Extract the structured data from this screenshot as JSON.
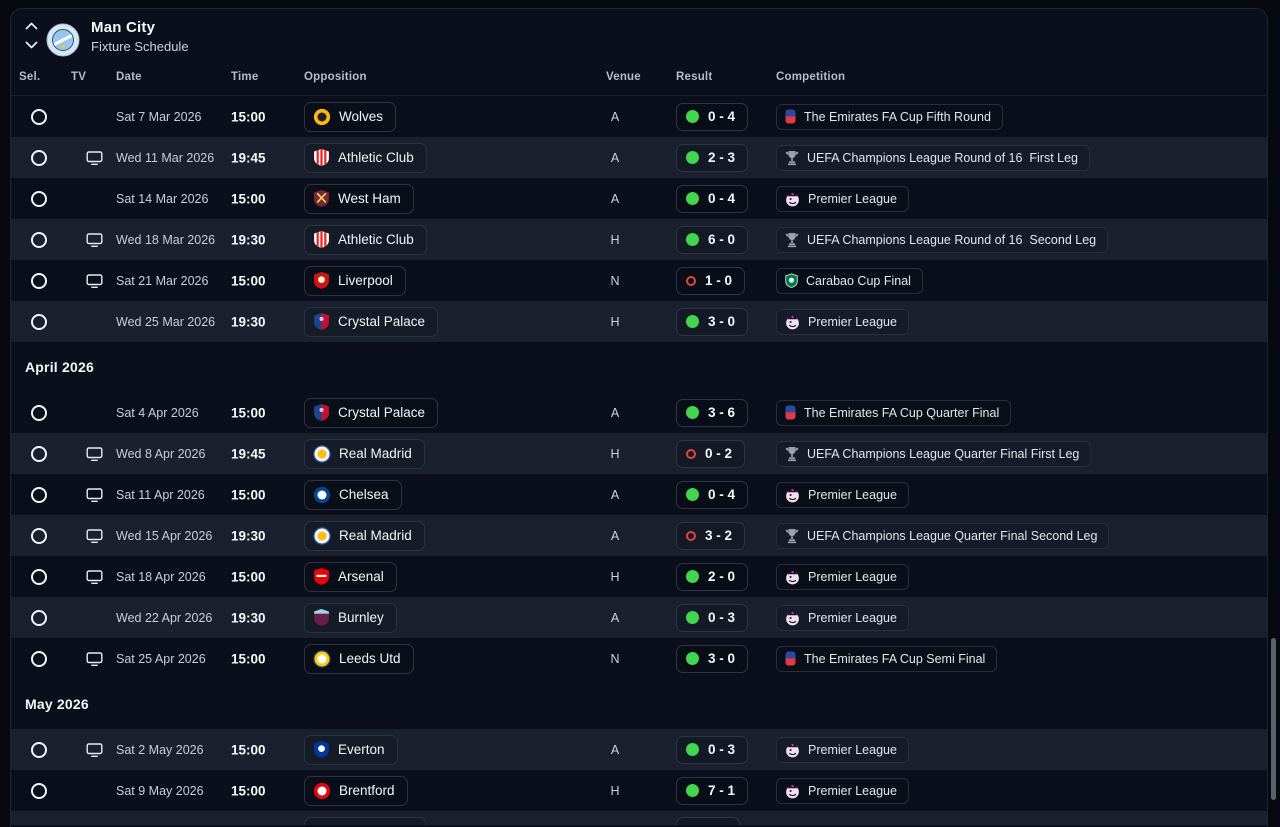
{
  "header": {
    "club": "Man City",
    "view": "Fixture Schedule"
  },
  "columns": {
    "sel": "Sel.",
    "tv": "TV",
    "date": "Date",
    "time": "Time",
    "opposition": "Opposition",
    "venue": "Venue",
    "result": "Result",
    "competition": "Competition"
  },
  "colors": {
    "win": "#41d64d",
    "loss": "#e2453b",
    "row_alt": "#1a202e",
    "panel_bg": "#0b0f1b"
  },
  "sections": [
    {
      "month": "",
      "rows": [
        {
          "tv": false,
          "date": "Sat 7 Mar 2026",
          "time": "15:00",
          "opponent": "Wolves",
          "crest": {
            "shape": "circle",
            "base": "#fdb913",
            "inner": "#231f20",
            "feature": "dot"
          },
          "venue": "A",
          "score": "0 - 4",
          "outcome": "win",
          "competition": "The Emirates FA Cup Fifth Round",
          "comp_icon": "fa-cup"
        },
        {
          "tv": true,
          "date": "Wed 11 Mar 2026",
          "time": "19:45",
          "opponent": "Athletic Club",
          "crest": {
            "shape": "shield",
            "base": "#ffffff",
            "inner": "#ee2523",
            "feature": "stripes"
          },
          "venue": "A",
          "score": "2 - 3",
          "outcome": "win",
          "competition": "UEFA Champions League Round of 16  First Leg",
          "comp_icon": "champions-league"
        },
        {
          "tv": false,
          "date": "Sat 14 Mar 2026",
          "time": "15:00",
          "opponent": "West Ham",
          "crest": {
            "shape": "shield",
            "base": "#7a263a",
            "inner": "#f3d459",
            "feature": "cross"
          },
          "venue": "A",
          "score": "0 - 4",
          "outcome": "win",
          "competition": "Premier League",
          "comp_icon": "premier-league"
        },
        {
          "tv": true,
          "date": "Wed 18 Mar 2026",
          "time": "19:30",
          "opponent": "Athletic Club",
          "crest": {
            "shape": "shield",
            "base": "#ffffff",
            "inner": "#ee2523",
            "feature": "stripes"
          },
          "venue": "H",
          "score": "6 - 0",
          "outcome": "win",
          "competition": "UEFA Champions League Round of 16  Second Leg",
          "comp_icon": "champions-league"
        },
        {
          "tv": true,
          "date": "Sat 21 Mar 2026",
          "time": "15:00",
          "opponent": "Liverpool",
          "crest": {
            "shape": "shield",
            "base": "#d01317",
            "inner": "#f6eedb",
            "feature": "dot"
          },
          "venue": "N",
          "score": "1 - 0",
          "outcome": "loss",
          "competition": "Carabao Cup Final",
          "comp_icon": "carabao-cup"
        },
        {
          "tv": false,
          "date": "Wed 25 Mar 2026",
          "time": "19:30",
          "opponent": "Crystal Palace",
          "crest": {
            "shape": "shield",
            "base": "#1b458f",
            "inner": "#c4122e",
            "feature": "split"
          },
          "venue": "H",
          "score": "3 - 0",
          "outcome": "win",
          "competition": "Premier League",
          "comp_icon": "premier-league"
        }
      ]
    },
    {
      "month": "April 2026",
      "rows": [
        {
          "tv": false,
          "date": "Sat 4 Apr 2026",
          "time": "15:00",
          "opponent": "Crystal Palace",
          "crest": {
            "shape": "shield",
            "base": "#1b458f",
            "inner": "#c4122e",
            "feature": "split"
          },
          "venue": "A",
          "score": "3 - 6",
          "outcome": "win",
          "competition": "The Emirates FA Cup Quarter Final",
          "comp_icon": "fa-cup"
        },
        {
          "tv": true,
          "date": "Wed 8 Apr 2026",
          "time": "19:45",
          "opponent": "Real Madrid",
          "crest": {
            "shape": "circle",
            "base": "#f5f4ee",
            "inner": "#febe10",
            "feature": "dot",
            "ring": "#2a5caa"
          },
          "venue": "H",
          "score": "0 - 2",
          "outcome": "loss",
          "competition": "UEFA Champions League Quarter Final First Leg",
          "comp_icon": "champions-league"
        },
        {
          "tv": true,
          "date": "Sat 11 Apr 2026",
          "time": "15:00",
          "opponent": "Chelsea",
          "crest": {
            "shape": "circle",
            "base": "#034694",
            "inner": "#ffffff",
            "feature": "dot"
          },
          "venue": "A",
          "score": "0 - 4",
          "outcome": "win",
          "competition": "Premier League",
          "comp_icon": "premier-league"
        },
        {
          "tv": true,
          "date": "Wed 15 Apr 2026",
          "time": "19:30",
          "opponent": "Real Madrid",
          "crest": {
            "shape": "circle",
            "base": "#f5f4ee",
            "inner": "#febe10",
            "feature": "dot",
            "ring": "#2a5caa"
          },
          "venue": "A",
          "score": "3 - 2",
          "outcome": "loss",
          "competition": "UEFA Champions League Quarter Final Second Leg",
          "comp_icon": "champions-league"
        },
        {
          "tv": true,
          "date": "Sat 18 Apr 2026",
          "time": "15:00",
          "opponent": "Arsenal",
          "crest": {
            "shape": "shield",
            "base": "#ef0107",
            "inner": "#ffffff",
            "feature": "bar"
          },
          "venue": "H",
          "score": "2 - 0",
          "outcome": "win",
          "competition": "Premier League",
          "comp_icon": "premier-league"
        },
        {
          "tv": false,
          "date": "Wed 22 Apr 2026",
          "time": "19:30",
          "opponent": "Burnley",
          "crest": {
            "shape": "shield",
            "base": "#6c1d45",
            "inner": "#99d6ea",
            "feature": "band"
          },
          "venue": "A",
          "score": "0 - 3",
          "outcome": "win",
          "competition": "Premier League",
          "comp_icon": "premier-league"
        },
        {
          "tv": true,
          "date": "Sat 25 Apr 2026",
          "time": "15:00",
          "opponent": "Leeds Utd",
          "crest": {
            "shape": "circle",
            "base": "#ffcd00",
            "inner": "#ffffff",
            "feature": "dot",
            "ring": "#1d428a"
          },
          "venue": "N",
          "score": "3 - 0",
          "outcome": "win",
          "competition": "The Emirates FA Cup Semi Final",
          "comp_icon": "fa-cup"
        }
      ]
    },
    {
      "month": "May 2026",
      "rows": [
        {
          "tv": true,
          "date": "Sat 2 May 2026",
          "time": "15:00",
          "opponent": "Everton",
          "crest": {
            "shape": "shield",
            "base": "#00369c",
            "inner": "#ffffff",
            "feature": "dot"
          },
          "venue": "A",
          "score": "0 - 3",
          "outcome": "win",
          "competition": "Premier League",
          "comp_icon": "premier-league"
        },
        {
          "tv": false,
          "date": "Sat 9 May 2026",
          "time": "15:00",
          "opponent": "Brentford",
          "crest": {
            "shape": "circle",
            "base": "#e30613",
            "inner": "#ffffff",
            "feature": "dot"
          },
          "venue": "H",
          "score": "7 - 1",
          "outcome": "win",
          "competition": "Premier League",
          "comp_icon": "premier-league"
        },
        {
          "partial": true
        }
      ]
    }
  ]
}
